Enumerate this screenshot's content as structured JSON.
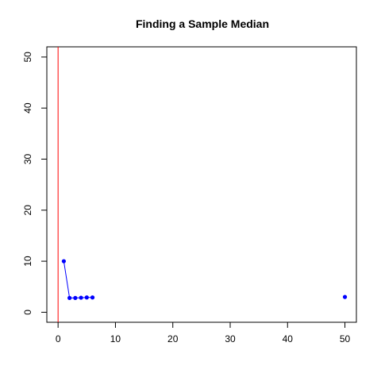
{
  "chart_data": {
    "type": "scatter",
    "title": "Finding a Sample Median",
    "xlabel": "",
    "ylabel": "",
    "xlim": [
      -1.96,
      52
    ],
    "ylim": [
      -1.96,
      52
    ],
    "x_ticks": [
      0,
      10,
      20,
      30,
      40,
      50
    ],
    "y_ticks": [
      0,
      10,
      20,
      30,
      40,
      50
    ],
    "grid": false,
    "points": [
      {
        "x": 1,
        "y": 10
      },
      {
        "x": 2,
        "y": 2.8
      },
      {
        "x": 3,
        "y": 2.8
      },
      {
        "x": 4,
        "y": 2.85
      },
      {
        "x": 5,
        "y": 2.9
      },
      {
        "x": 6,
        "y": 2.9
      },
      {
        "x": 50,
        "y": 3
      }
    ],
    "connected_points": 6,
    "point_color": "#0000ff",
    "vertical_line": {
      "x": 0,
      "color": "#ff0000"
    }
  }
}
